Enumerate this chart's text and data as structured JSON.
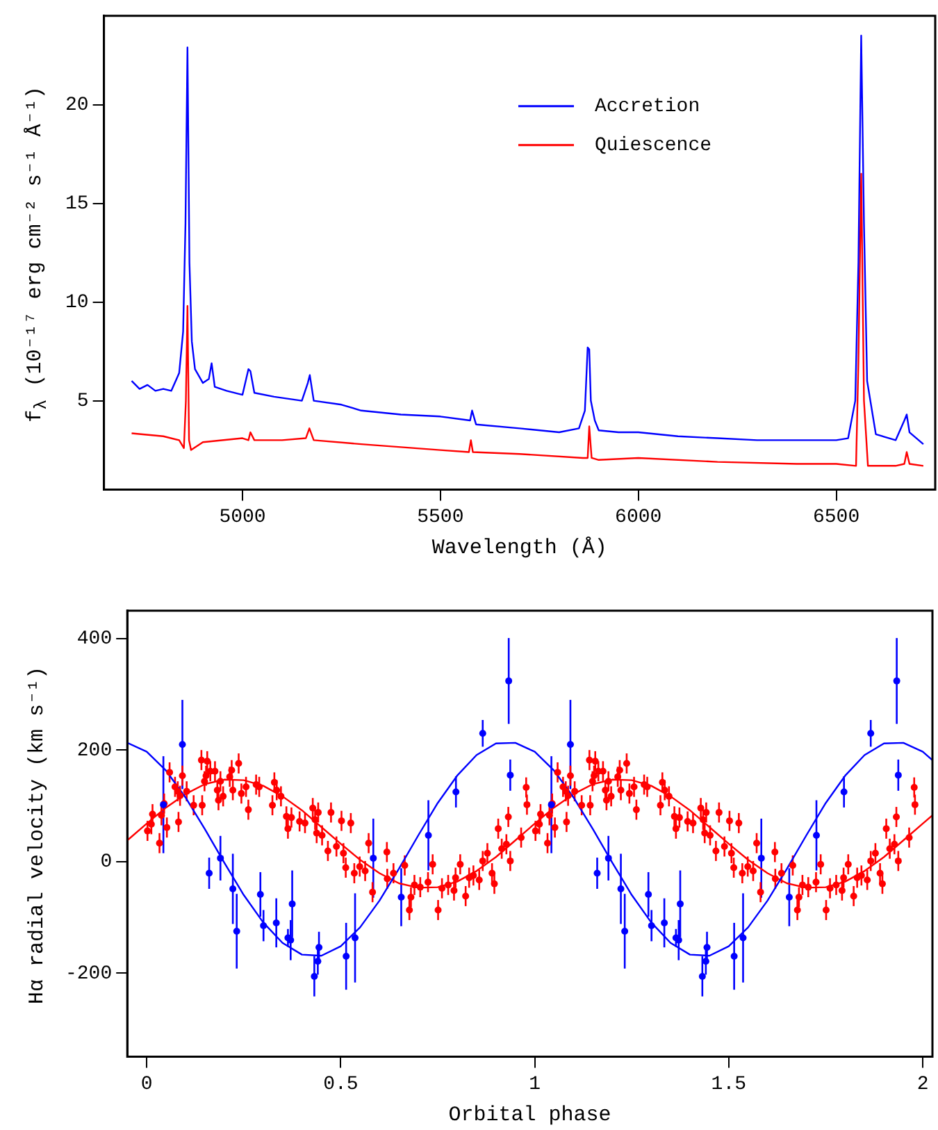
{
  "chart_data": [
    {
      "type": "line",
      "xlabel": "Wavelength (Å)",
      "ylabel": "f$_{λ}$ (10⁻¹⁷ erg cm⁻² s⁻¹ Å⁻¹)",
      "xlim": [
        4650,
        6750
      ],
      "ylim": [
        0.5,
        24.5
      ],
      "xticks": [
        5000,
        5500,
        6000,
        6500
      ],
      "yticks": [
        5,
        10,
        15,
        20
      ],
      "legend": "top right",
      "marker": "none",
      "series": [
        {
          "name": "Accretion",
          "color": "#0000ff",
          "x": [
            4720,
            4740,
            4760,
            4780,
            4800,
            4820,
            4840,
            4850,
            4856,
            4861,
            4866,
            4872,
            4880,
            4900,
            4915,
            4922,
            4930,
            4960,
            5000,
            5015,
            5020,
            5030,
            5080,
            5150,
            5165,
            5170,
            5180,
            5250,
            5300,
            5400,
            5500,
            5575,
            5580,
            5590,
            5700,
            5800,
            5850,
            5865,
            5872,
            5876,
            5880,
            5890,
            5900,
            5950,
            6000,
            6100,
            6200,
            6300,
            6400,
            6500,
            6530,
            6548,
            6556,
            6563,
            6570,
            6578,
            6600,
            6650,
            6672,
            6678,
            6685,
            6720
          ],
          "values": [
            6.0,
            5.6,
            5.8,
            5.5,
            5.6,
            5.5,
            6.4,
            8.5,
            14,
            22.9,
            12,
            8,
            6.6,
            5.9,
            6.1,
            6.9,
            5.7,
            5.5,
            5.3,
            6.6,
            6.5,
            5.4,
            5.2,
            5.0,
            5.9,
            6.3,
            5.0,
            4.8,
            4.5,
            4.3,
            4.2,
            4.0,
            4.5,
            3.8,
            3.6,
            3.4,
            3.6,
            4.5,
            7.7,
            7.6,
            5.0,
            4.0,
            3.5,
            3.4,
            3.4,
            3.2,
            3.1,
            3.0,
            3.0,
            3.0,
            3.1,
            5,
            12,
            23.5,
            14,
            6,
            3.3,
            3.0,
            4.0,
            4.3,
            3.4,
            2.8
          ]
        },
        {
          "name": "Quiescence",
          "color": "#ff0000",
          "x": [
            4720,
            4800,
            4840,
            4852,
            4857,
            4861,
            4865,
            4870,
            4900,
            5000,
            5015,
            5020,
            5030,
            5100,
            5160,
            5169,
            5180,
            5300,
            5500,
            5572,
            5577,
            5582,
            5700,
            5860,
            5872,
            5876,
            5882,
            5900,
            6000,
            6200,
            6400,
            6500,
            6550,
            6556,
            6563,
            6570,
            6580,
            6650,
            6672,
            6678,
            6685,
            6720
          ],
          "values": [
            3.35,
            3.2,
            3.0,
            2.6,
            5,
            9.8,
            3,
            2.5,
            2.9,
            3.1,
            3.0,
            3.4,
            3.0,
            3.0,
            3.1,
            3.6,
            3.0,
            2.8,
            2.5,
            2.4,
            3.0,
            2.4,
            2.3,
            2.1,
            2.1,
            3.7,
            2.1,
            2.0,
            2.1,
            1.9,
            1.8,
            1.8,
            1.7,
            7,
            16.5,
            5,
            1.7,
            1.7,
            1.8,
            2.4,
            1.8,
            1.7
          ]
        }
      ]
    },
    {
      "type": "scatter",
      "xlabel": "Orbital phase",
      "ylabel": "Hα radial velocity (km s⁻¹)",
      "xlim": [
        -0.05,
        2.025
      ],
      "ylim": [
        -350,
        450
      ],
      "xticks": [
        0,
        0.5,
        1,
        1.5,
        2
      ],
      "yticks": [
        -200,
        0,
        200,
        400
      ],
      "marker": "circle",
      "series": [
        {
          "color": "#0000ff",
          "x": [
            0.043,
            0.092,
            0.161,
            0.19,
            0.222,
            0.232,
            0.293,
            0.301,
            0.334,
            0.364,
            0.371,
            0.375,
            0.432,
            0.441,
            0.444,
            0.514,
            0.537,
            0.584,
            0.656,
            0.726,
            0.797,
            0.866,
            0.933,
            0.937,
            1.043,
            1.092,
            1.161,
            1.19,
            1.222,
            1.232,
            1.293,
            1.301,
            1.334,
            1.364,
            1.371,
            1.375,
            1.432,
            1.441,
            1.444,
            1.514,
            1.537,
            1.584,
            1.656,
            1.726,
            1.797,
            1.866,
            1.933,
            1.937
          ],
          "values": [
            102,
            210,
            -21,
            6,
            -49,
            -125,
            -59,
            -115,
            -110,
            -137,
            -141,
            -76,
            -206,
            -179,
            -154,
            -170,
            -137,
            6,
            -64,
            47,
            125,
            230,
            324,
            155,
            102,
            210,
            -21,
            6,
            -49,
            -125,
            -59,
            -115,
            -110,
            -137,
            -141,
            -76,
            -206,
            -179,
            -154,
            -170,
            -137,
            6,
            -64,
            47,
            125,
            230,
            324,
            155
          ],
          "errors": [
            87,
            80,
            28,
            40,
            63,
            67,
            40,
            28,
            44,
            16,
            36,
            60,
            36,
            24,
            28,
            60,
            80,
            71,
            52,
            63,
            28,
            24,
            77,
            28,
            87,
            80,
            28,
            40,
            63,
            67,
            40,
            28,
            44,
            16,
            36,
            60,
            36,
            24,
            28,
            60,
            80,
            71,
            52,
            63,
            28,
            24,
            77,
            28
          ]
        },
        {
          "color": "#ff0000",
          "x": [
            0.002,
            0.012,
            0.015,
            0.033,
            0.038,
            0.045,
            0.052,
            0.059,
            0.073,
            0.08,
            0.082,
            0.086,
            0.092,
            0.103,
            0.121,
            0.141,
            0.143,
            0.149,
            0.153,
            0.156,
            0.164,
            0.176,
            0.182,
            0.185,
            0.19,
            0.197,
            0.214,
            0.219,
            0.222,
            0.237,
            0.244,
            0.256,
            0.262,
            0.282,
            0.29,
            0.324,
            0.329,
            0.335,
            0.346,
            0.36,
            0.364,
            0.373,
            0.394,
            0.408,
            0.428,
            0.434,
            0.438,
            0.442,
            0.452,
            0.467,
            0.475,
            0.489,
            0.502,
            0.507,
            0.513,
            0.526,
            0.535,
            0.549,
            0.563,
            0.572,
            0.582,
            0.619,
            0.62,
            0.636,
            0.665,
            0.677,
            0.681,
            0.69,
            0.705,
            0.725,
            0.737,
            0.751,
            0.761,
            0.777,
            0.792,
            0.796,
            0.808,
            0.822,
            0.831,
            0.842,
            0.857,
            0.866,
            0.878,
            0.89,
            0.896,
            0.906,
            0.915,
            0.927,
            0.932,
            0.937,
            0.965,
            0.978,
            0.98,
            1.002,
            1.012,
            1.015,
            1.033,
            1.038,
            1.045,
            1.052,
            1.059,
            1.073,
            1.08,
            1.082,
            1.086,
            1.092,
            1.103,
            1.121,
            1.141,
            1.143,
            1.149,
            1.153,
            1.156,
            1.164,
            1.176,
            1.182,
            1.185,
            1.19,
            1.197,
            1.214,
            1.219,
            1.222,
            1.237,
            1.244,
            1.256,
            1.262,
            1.282,
            1.29,
            1.324,
            1.329,
            1.335,
            1.346,
            1.36,
            1.364,
            1.373,
            1.394,
            1.408,
            1.428,
            1.434,
            1.438,
            1.442,
            1.452,
            1.467,
            1.475,
            1.489,
            1.502,
            1.507,
            1.513,
            1.526,
            1.535,
            1.549,
            1.563,
            1.572,
            1.582,
            1.619,
            1.62,
            1.636,
            1.665,
            1.677,
            1.681,
            1.69,
            1.705,
            1.725,
            1.737,
            1.751,
            1.761,
            1.777,
            1.792,
            1.796,
            1.808,
            1.822,
            1.831,
            1.842,
            1.857,
            1.866,
            1.878,
            1.89,
            1.896,
            1.906,
            1.915,
            1.927,
            1.932,
            1.937,
            1.965,
            1.978,
            1.98
          ],
          "values": [
            55,
            67,
            85,
            33,
            83,
            104,
            61,
            160,
            134,
            126,
            71,
            118,
            154,
            126,
            101,
            182,
            101,
            144,
            154,
            180,
            162,
            162,
            128,
            110,
            144,
            117,
            152,
            164,
            128,
            176,
            122,
            134,
            93,
            138,
            134,
            101,
            142,
            128,
            117,
            81,
            59,
            79,
            72,
            69,
            96,
            75,
            51,
            88,
            47,
            19,
            88,
            27,
            73,
            15,
            -11,
            69,
            -21,
            -9,
            -17,
            33,
            -55,
            17,
            -31,
            -21,
            -7,
            -87,
            -64,
            -42,
            -46,
            -37,
            -5,
            -87,
            -48,
            -42,
            -52,
            -29,
            -5,
            -62,
            -29,
            -25,
            -33,
            1,
            15,
            -21,
            -40,
            59,
            23,
            31,
            80,
            1,
            43,
            133,
            102,
            55,
            67,
            85,
            33,
            83,
            104,
            61,
            160,
            134,
            126,
            71,
            118,
            154,
            126,
            101,
            182,
            101,
            144,
            154,
            180,
            162,
            162,
            128,
            110,
            144,
            117,
            152,
            164,
            128,
            176,
            122,
            134,
            93,
            138,
            134,
            101,
            142,
            128,
            117,
            81,
            59,
            79,
            72,
            69,
            96,
            75,
            51,
            88,
            47,
            19,
            88,
            27,
            73,
            15,
            -11,
            69,
            -21,
            -9,
            -17,
            33,
            -55,
            17,
            -31,
            -21,
            -7,
            -87,
            -64,
            -42,
            -46,
            -37,
            -5,
            -87,
            -48,
            -42,
            -52,
            -29,
            -5,
            -62,
            -29,
            -25,
            -33,
            1,
            15,
            -21,
            -40,
            59,
            23,
            31,
            80,
            1,
            43,
            133,
            102
          ],
          "errors": [
            18,
            18,
            18,
            18,
            18,
            18,
            18,
            18,
            18,
            18,
            18,
            18,
            18,
            18,
            18,
            18,
            18,
            18,
            18,
            18,
            18,
            18,
            18,
            18,
            18,
            18,
            18,
            18,
            18,
            18,
            18,
            18,
            18,
            18,
            18,
            18,
            18,
            18,
            18,
            18,
            18,
            18,
            18,
            18,
            18,
            18,
            18,
            18,
            18,
            18,
            18,
            18,
            18,
            18,
            18,
            18,
            18,
            18,
            18,
            18,
            18,
            18,
            18,
            18,
            18,
            18,
            18,
            18,
            18,
            18,
            18,
            18,
            18,
            18,
            18,
            18,
            18,
            18,
            18,
            18,
            18,
            18,
            18,
            18,
            18,
            18,
            18,
            18,
            18,
            18,
            18,
            18,
            18,
            18,
            18,
            18,
            18,
            18,
            18,
            18,
            18,
            18,
            18,
            18,
            18,
            18,
            18,
            18,
            18,
            18,
            18,
            18,
            18,
            18,
            18,
            18,
            18,
            18,
            18,
            18,
            18,
            18,
            18,
            18,
            18,
            18,
            18,
            18,
            18,
            18,
            18,
            18,
            18,
            18,
            18,
            18,
            18,
            18,
            18,
            18,
            18,
            18,
            18,
            18,
            18,
            18,
            18,
            18,
            18,
            18,
            18,
            18,
            18,
            18,
            18,
            18,
            18,
            18,
            18,
            18,
            18,
            18,
            18,
            18,
            18,
            18,
            18,
            18,
            18,
            18,
            18,
            18,
            18,
            18,
            18,
            18,
            18,
            18,
            18,
            18,
            18,
            18,
            18,
            18,
            18,
            18
          ]
        },
        {
          "type": "line",
          "marker": "none",
          "color": "#0000ff",
          "x": [
            -0.05,
            0,
            0.05,
            0.1,
            0.15,
            0.2,
            0.25,
            0.3,
            0.35,
            0.4,
            0.45,
            0.5,
            0.55,
            0.6,
            0.65,
            0.7,
            0.75,
            0.8,
            0.85,
            0.9,
            0.95,
            1,
            1.05,
            1.1,
            1.15,
            1.2,
            1.25,
            1.3,
            1.35,
            1.4,
            1.45,
            1.5,
            1.55,
            1.6,
            1.65,
            1.7,
            1.75,
            1.8,
            1.85,
            1.9,
            1.95,
            2,
            2.025
          ],
          "values": [
            213,
            197,
            163,
            115,
            58,
            -2,
            -60,
            -109,
            -146,
            -167,
            -169,
            -152,
            -118,
            -70,
            -13,
            47,
            105,
            154,
            191,
            212,
            213,
            197,
            163,
            115,
            58,
            -2,
            -60,
            -109,
            -146,
            -167,
            -169,
            -152,
            -118,
            -70,
            -13,
            47,
            105,
            154,
            191,
            212,
            213,
            197,
            182
          ]
        },
        {
          "type": "line",
          "marker": "none",
          "color": "#ff0000",
          "x": [
            -0.05,
            0,
            0.05,
            0.1,
            0.15,
            0.2,
            0.25,
            0.3,
            0.35,
            0.4,
            0.45,
            0.5,
            0.55,
            0.6,
            0.65,
            0.7,
            0.75,
            0.8,
            0.85,
            0.9,
            0.95,
            1,
            1.05,
            1.1,
            1.15,
            1.2,
            1.25,
            1.3,
            1.35,
            1.4,
            1.45,
            1.5,
            1.55,
            1.6,
            1.65,
            1.7,
            1.75,
            1.8,
            1.85,
            1.9,
            1.95,
            2,
            2.025
          ],
          "values": [
            38,
            68,
            97,
            121,
            139,
            147,
            146,
            136,
            117,
            92,
            62,
            32,
            3,
            -21,
            -39,
            -47,
            -46,
            -36,
            -17,
            8,
            38,
            68,
            97,
            121,
            139,
            147,
            146,
            136,
            117,
            92,
            62,
            32,
            3,
            -21,
            -39,
            -47,
            -46,
            -36,
            -17,
            8,
            38,
            68,
            83
          ]
        }
      ]
    }
  ]
}
